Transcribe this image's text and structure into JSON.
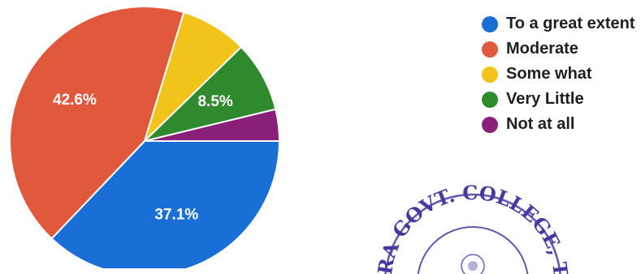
{
  "chart_data": {
    "type": "pie",
    "categories": [
      "To a great extent",
      "Moderate",
      "Some what",
      "Very Little",
      "Not at all"
    ],
    "values": [
      37.1,
      42.6,
      8.0,
      8.5,
      3.8
    ],
    "labels": [
      "37.1%",
      "42.6%",
      "",
      "8.5%",
      ""
    ],
    "colors": [
      "#1a6fd6",
      "#e0593d",
      "#f2c31a",
      "#2e8a2c",
      "#8a1f7a"
    ],
    "legend_position": "right"
  },
  "legend": {
    "items": [
      {
        "label": "To a great extent",
        "color": "#1a6fd6"
      },
      {
        "label": "Moderate",
        "color": "#e0593d"
      },
      {
        "label": "Some what",
        "color": "#f2c31a"
      },
      {
        "label": "Very Little",
        "color": "#2e8a2c"
      },
      {
        "label": "Not at all",
        "color": "#8a1f7a"
      }
    ]
  },
  "seal": {
    "text": "RA GOVT. COLLEGE, T",
    "color": "#4a37a0"
  }
}
